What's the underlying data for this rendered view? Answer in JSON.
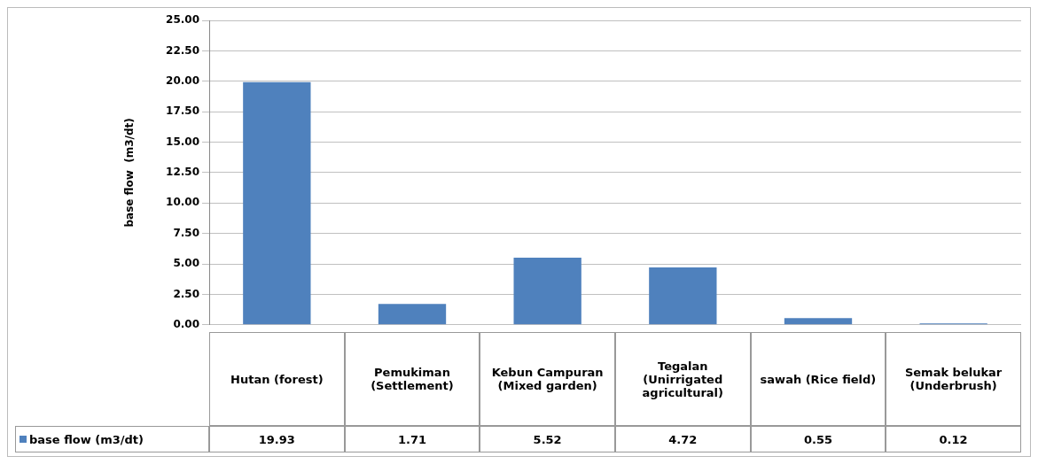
{
  "chart_data": {
    "type": "bar",
    "ylabel": "base flow  (m3/dt)",
    "categories": [
      "Hutan (forest)",
      "Pemukiman (Settlement)",
      "Kebun Campuran (Mixed garden)",
      "Tegalan (Unirrigated agricultural)",
      "sawah (Rice field)",
      "Semak belukar (Underbrush)"
    ],
    "series": [
      {
        "name": "base flow  (m3/dt)",
        "color": "#4f81bd",
        "values": [
          19.93,
          1.71,
          5.52,
          4.72,
          0.55,
          0.12
        ]
      }
    ],
    "ylim": [
      0,
      25
    ],
    "yticks": [
      {
        "value": 0,
        "label": "0.00"
      },
      {
        "value": 2.5,
        "label": "2.50"
      },
      {
        "value": 5,
        "label": "5.00"
      },
      {
        "value": 7.5,
        "label": "7.50"
      },
      {
        "value": 10,
        "label": "10.00"
      },
      {
        "value": 12.5,
        "label": "12.50"
      },
      {
        "value": 15,
        "label": "15.00"
      },
      {
        "value": 17.5,
        "label": "17.50"
      },
      {
        "value": 20,
        "label": "20.00"
      },
      {
        "value": 22.5,
        "label": "22.50"
      },
      {
        "value": 25,
        "label": "25.00"
      }
    ],
    "grid": "y",
    "legend": "bottom",
    "data_labels": true
  }
}
